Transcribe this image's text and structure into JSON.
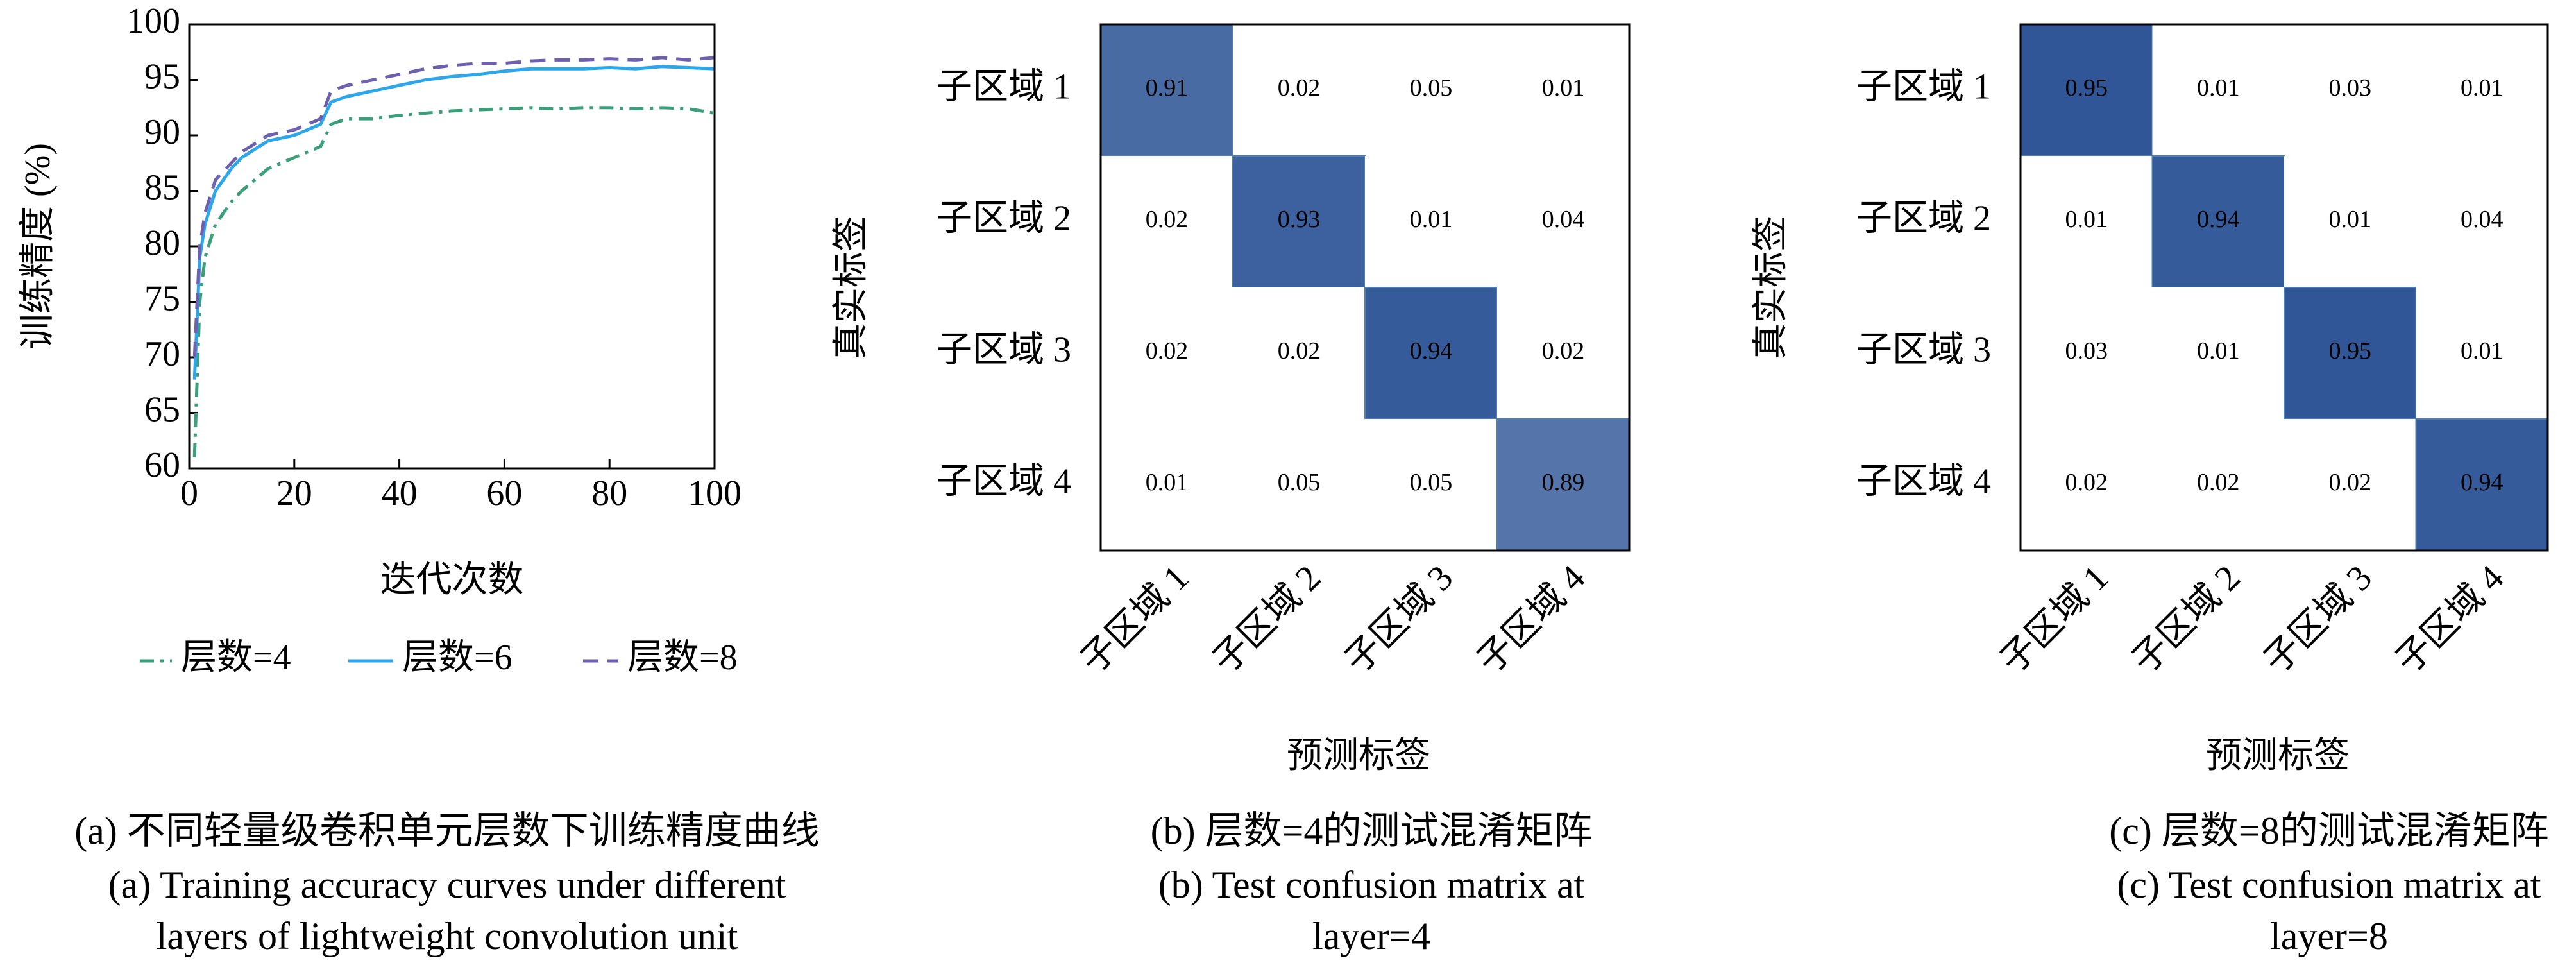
{
  "chart_data": [
    {
      "type": "line",
      "xlabel": "迭代次数",
      "ylabel": "训练精度 (%)",
      "x": [
        1,
        2,
        3,
        5,
        8,
        10,
        15,
        20,
        25,
        27,
        30,
        35,
        40,
        45,
        50,
        55,
        60,
        65,
        70,
        75,
        80,
        85,
        90,
        95,
        100
      ],
      "series": [
        {
          "name": "层数=4",
          "color": "#3a9f7a",
          "linestyle": "dashdot",
          "values": [
            61,
            75,
            79,
            82,
            84,
            85,
            87,
            88,
            89,
            91,
            91.5,
            91.5,
            91.8,
            92,
            92.2,
            92.3,
            92.4,
            92.5,
            92.4,
            92.5,
            92.5,
            92.4,
            92.5,
            92.4,
            92
          ]
        },
        {
          "name": "层数=6",
          "color": "#2ea6ea",
          "linestyle": "solid",
          "values": [
            68,
            79,
            82,
            85,
            87,
            88,
            89.5,
            90,
            91,
            93,
            93.5,
            94,
            94.5,
            95,
            95.3,
            95.5,
            95.8,
            96,
            96,
            96,
            96.1,
            96,
            96.2,
            96.1,
            96
          ]
        },
        {
          "name": "层数=8",
          "color": "#6f5fb0",
          "linestyle": "dashed",
          "values": [
            70,
            80,
            83,
            86,
            87.5,
            88.5,
            90,
            90.5,
            91.5,
            94,
            94.5,
            95,
            95.5,
            96,
            96.3,
            96.5,
            96.5,
            96.7,
            96.8,
            96.8,
            96.9,
            96.8,
            97,
            96.8,
            97
          ]
        }
      ],
      "xlim": [
        0,
        100
      ],
      "xticks": [
        0,
        20,
        40,
        60,
        80,
        100
      ],
      "ylim": [
        60,
        100
      ],
      "yticks": [
        60,
        65,
        70,
        75,
        80,
        85,
        90,
        95,
        100
      ],
      "caption": [
        "(a) 不同轻量级卷积单元层数下训练精度曲线",
        "(a) Training accuracy curves under different",
        "layers of lightweight convolution unit"
      ]
    },
    {
      "type": "heatmap",
      "xlabel": "预测标签",
      "ylabel": "真实标签",
      "categories": [
        "子区域 1",
        "子区域 2",
        "子区域 3",
        "子区域 4"
      ],
      "values": [
        [
          0.91,
          0.02,
          0.05,
          0.01
        ],
        [
          0.02,
          0.93,
          0.01,
          0.04
        ],
        [
          0.02,
          0.02,
          0.94,
          0.02
        ],
        [
          0.01,
          0.05,
          0.05,
          0.89
        ]
      ],
      "colors": [
        "#ffffff",
        "#0d3a86"
      ],
      "caption": [
        "(b) 层数=4的测试混淆矩阵",
        "(b) Test confusion matrix at",
        "layer=4"
      ]
    },
    {
      "type": "heatmap",
      "xlabel": "预测标签",
      "ylabel": "真实标签",
      "categories": [
        "子区域 1",
        "子区域 2",
        "子区域 3",
        "子区域 4"
      ],
      "values": [
        [
          0.95,
          0.01,
          0.03,
          0.01
        ],
        [
          0.01,
          0.94,
          0.01,
          0.04
        ],
        [
          0.03,
          0.01,
          0.95,
          0.01
        ],
        [
          0.02,
          0.02,
          0.02,
          0.94
        ]
      ],
      "colors": [
        "#ffffff",
        "#0d3a86"
      ],
      "caption": [
        "(c) 层数=8的测试混淆矩阵",
        "(c) Test confusion matrix at",
        "layer=8"
      ]
    }
  ]
}
